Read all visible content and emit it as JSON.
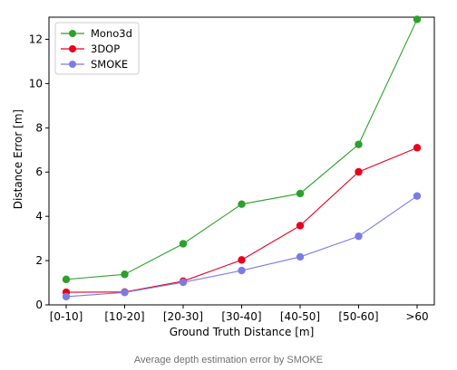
{
  "caption": "Average depth estimation error by SMOKE",
  "chart_data": {
    "type": "line",
    "categories": [
      "[0-10]",
      "[10-20]",
      "[20-30]",
      "[30-40]",
      "[40-50]",
      "[50-60]",
      ">60"
    ],
    "series": [
      {
        "name": "Mono3d",
        "color": "#2ca02c",
        "values": [
          1.15,
          1.38,
          2.76,
          4.55,
          5.03,
          7.25,
          12.9
        ]
      },
      {
        "name": "3DOP",
        "color": "#e8001c",
        "values": [
          0.57,
          0.58,
          1.07,
          2.03,
          3.58,
          6.01,
          7.1
        ]
      },
      {
        "name": "SMOKE",
        "color": "#7b7be8",
        "values": [
          0.37,
          0.56,
          1.02,
          1.55,
          2.17,
          3.1,
          4.92
        ]
      }
    ],
    "xlabel": "Ground Truth Distance [m]",
    "ylabel": "Distance Error [m]",
    "ylim": [
      0,
      13
    ],
    "yticks": [
      0,
      2,
      4,
      6,
      8,
      10,
      12
    ],
    "grid": false,
    "legend_position": "top-left"
  }
}
